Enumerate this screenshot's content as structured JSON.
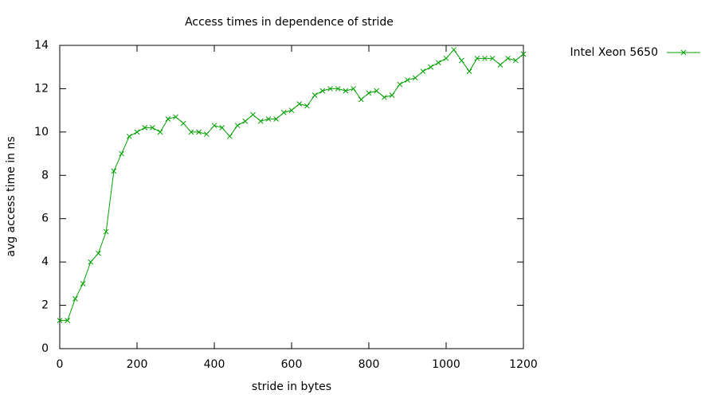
{
  "chart_data": {
    "type": "line",
    "title": "Access times in dependence of stride",
    "xlabel": "stride in bytes",
    "ylabel": "avg access time in ns",
    "x": [
      0,
      20,
      40,
      60,
      80,
      100,
      120,
      140,
      160,
      180,
      200,
      220,
      240,
      260,
      280,
      300,
      320,
      340,
      360,
      380,
      400,
      420,
      440,
      460,
      480,
      500,
      520,
      540,
      560,
      580,
      600,
      620,
      640,
      660,
      680,
      700,
      720,
      740,
      760,
      780,
      800,
      820,
      840,
      860,
      880,
      900,
      920,
      940,
      960,
      980,
      1000,
      1020,
      1040,
      1060,
      1080,
      1100,
      1120,
      1140,
      1160,
      1180,
      1200
    ],
    "series": [
      {
        "name": "Intel Xeon 5650",
        "color": "#00a000",
        "values": [
          1.3,
          1.3,
          2.3,
          3.0,
          4.0,
          4.4,
          5.4,
          8.2,
          9.0,
          9.8,
          10.0,
          10.2,
          10.2,
          10.0,
          10.6,
          10.7,
          10.4,
          10.0,
          10.0,
          9.9,
          10.3,
          10.2,
          9.8,
          10.3,
          10.5,
          10.8,
          10.5,
          10.6,
          10.6,
          10.9,
          11.0,
          11.3,
          11.2,
          11.7,
          11.9,
          12.0,
          12.0,
          11.9,
          12.0,
          11.5,
          11.8,
          11.9,
          11.6,
          11.7,
          12.2,
          12.4,
          12.5,
          12.8,
          13.0,
          13.2,
          13.4,
          13.8,
          13.3,
          12.8,
          13.4,
          13.4,
          13.4,
          13.1,
          13.4,
          13.3,
          13.6
        ]
      }
    ],
    "xlim": [
      0,
      1200
    ],
    "xticks": [
      0,
      200,
      400,
      600,
      800,
      1000,
      1200
    ],
    "ylim": [
      0,
      14
    ],
    "yticks": [
      0,
      2,
      4,
      6,
      8,
      10,
      12,
      14
    ]
  }
}
